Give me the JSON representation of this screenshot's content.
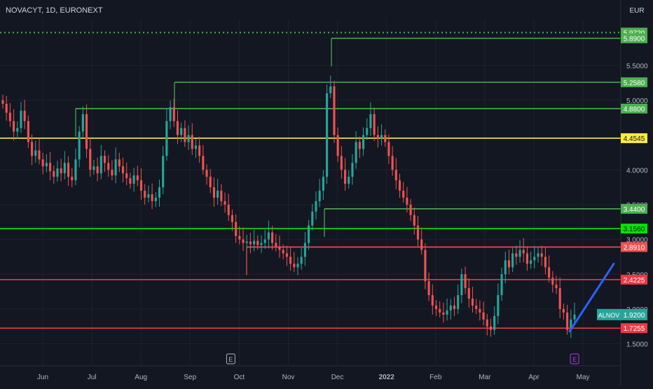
{
  "header": {
    "symbol_title": "NOVACYT, 1D, EURONEXT",
    "currency": "EUR"
  },
  "chart_data": {
    "type": "candlestick",
    "symbol": "ALNOV",
    "last_price": "1.9200",
    "x_ticks": [
      "Jun",
      "Jul",
      "Aug",
      "Sep",
      "Oct",
      "Nov",
      "Dec",
      "2022",
      "Feb",
      "Mar",
      "Apr",
      "May"
    ],
    "y_ticks": [
      "5.5000",
      "5.0000",
      "4.0000",
      "3.5000",
      "3.0000",
      "2.5000",
      "2.0000",
      "1.5000"
    ],
    "ylim": [
      1.4,
      6.2
    ],
    "colors": {
      "up": "#26a69a",
      "down": "#ef5350",
      "background": "#131722",
      "grid": "#1e222d"
    },
    "levels": [
      {
        "price": 5.972,
        "label": "5.9720",
        "color": "#4caf50",
        "style": "dotted"
      },
      {
        "price": 5.89,
        "label": "5.8900",
        "color": "#4caf50",
        "style": "solid"
      },
      {
        "price": 5.258,
        "label": "5.2580",
        "color": "#4caf50",
        "style": "solid"
      },
      {
        "price": 4.88,
        "label": "4.8800",
        "color": "#4caf50",
        "style": "solid"
      },
      {
        "price": 4.4545,
        "label": "4.4545",
        "color": "#ffeb3b",
        "style": "solid"
      },
      {
        "price": 3.44,
        "label": "3.4400",
        "color": "#4caf50",
        "style": "solid"
      },
      {
        "price": 3.156,
        "label": "3.1560",
        "color": "#00e600",
        "style": "solid"
      },
      {
        "price": 2.891,
        "label": "2.8910",
        "color": "#ef5350",
        "style": "solid"
      },
      {
        "price": 2.4225,
        "label": "2.4225",
        "color": "#f23645",
        "style": "solid"
      },
      {
        "price": 1.7255,
        "label": "1.7255",
        "color": "#f23645",
        "style": "solid"
      }
    ],
    "earnings_markers": [
      {
        "label": "E",
        "month_index": 4.0,
        "color": "#b2b5be"
      },
      {
        "label": "E",
        "month_index": 11.0,
        "color": "#b13fe6"
      }
    ],
    "projection": {
      "from_price": 1.68,
      "to_price": 2.65,
      "color": "#2962ff"
    },
    "series": [
      {
        "name": "ALNOV",
        "closes": [
          4.95,
          4.82,
          4.7,
          4.55,
          4.6,
          4.85,
          4.7,
          4.4,
          4.2,
          4.28,
          4.15,
          4.05,
          4.1,
          3.98,
          3.9,
          4.02,
          3.95,
          4.1,
          3.9,
          3.85,
          4.15,
          4.55,
          4.8,
          4.3,
          4.0,
          4.05,
          3.95,
          4.2,
          4.1,
          4.0,
          3.92,
          4.15,
          4.05,
          3.95,
          3.88,
          3.8,
          3.92,
          3.85,
          3.7,
          3.6,
          3.65,
          3.55,
          3.6,
          3.75,
          4.2,
          4.7,
          4.9,
          4.7,
          4.5,
          4.6,
          4.4,
          4.5,
          4.3,
          4.35,
          4.2,
          4.0,
          3.9,
          3.75,
          3.6,
          3.7,
          3.55,
          3.5,
          3.35,
          3.25,
          3.05,
          3.0,
          2.95,
          2.97,
          2.93,
          2.98,
          2.92,
          2.95,
          3.0,
          3.1,
          2.95,
          2.9,
          2.85,
          2.8,
          2.75,
          2.65,
          2.6,
          2.65,
          2.75,
          2.95,
          3.2,
          3.4,
          3.55,
          3.7,
          3.9,
          5.1,
          5.2,
          4.5,
          4.2,
          4.0,
          3.8,
          3.9,
          4.1,
          4.4,
          4.3,
          4.5,
          4.6,
          4.8,
          4.5,
          4.45,
          4.5,
          4.4,
          4.2,
          4.0,
          3.85,
          3.7,
          3.6,
          3.5,
          3.35,
          3.2,
          3.0,
          2.85,
          2.4,
          2.2,
          2.05,
          2.0,
          1.95,
          1.92,
          1.98,
          2.05,
          2.0,
          2.2,
          2.5,
          2.3,
          2.15,
          2.05,
          2.0,
          1.95,
          1.85,
          1.75,
          1.7,
          1.9,
          2.2,
          2.5,
          2.7,
          2.6,
          2.8,
          2.75,
          2.85,
          2.8,
          2.65,
          2.7,
          2.75,
          2.8,
          2.75,
          2.6,
          2.45,
          2.35,
          2.3,
          2.0,
          1.95,
          1.7,
          1.85,
          1.92
        ]
      }
    ]
  }
}
